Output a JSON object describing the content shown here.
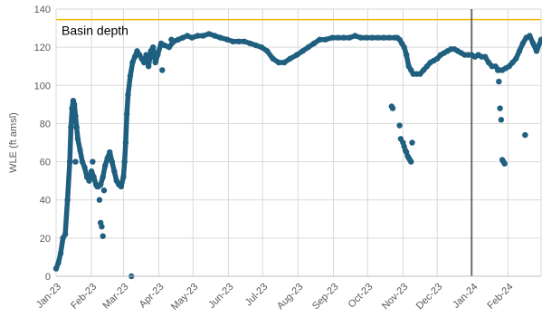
{
  "chart_data": {
    "type": "scatter",
    "ylabel": "WLE (ft amsl)",
    "xlabel": "",
    "ylim": [
      0,
      140
    ],
    "yticks": [
      0,
      20,
      40,
      60,
      80,
      100,
      120,
      140
    ],
    "xlim": [
      "2023-01-01",
      "2024-03-01"
    ],
    "xticks": [
      {
        "date": "2023-01-01",
        "label": "Jan-23"
      },
      {
        "date": "2023-02-01",
        "label": "Feb-23"
      },
      {
        "date": "2023-03-01",
        "label": "Mar-23"
      },
      {
        "date": "2023-04-01",
        "label": "Apr-23"
      },
      {
        "date": "2023-05-01",
        "label": "May-23"
      },
      {
        "date": "2023-06-01",
        "label": "Jun-23"
      },
      {
        "date": "2023-07-01",
        "label": "Jul-23"
      },
      {
        "date": "2023-08-01",
        "label": "Aug-23"
      },
      {
        "date": "2023-09-01",
        "label": "Sep-23"
      },
      {
        "date": "2023-10-01",
        "label": "Oct-23"
      },
      {
        "date": "2023-11-01",
        "label": "Nov-23"
      },
      {
        "date": "2023-12-01",
        "label": "Dec-23"
      },
      {
        "date": "2024-01-01",
        "label": "Jan-24"
      },
      {
        "date": "2024-02-01",
        "label": "Feb-24"
      }
    ],
    "grid": true,
    "colors": {
      "series": "#1f5f7f",
      "basin_depth": "#f5b800",
      "grid": "#d9d9d9",
      "vline": "#000000"
    },
    "reference_line": {
      "label": "Basin depth",
      "y": 134.5
    },
    "vertical_line": {
      "date": "2023-12-31"
    },
    "series": [
      {
        "x": [
          "2023-01-01",
          "2023-01-03",
          "2023-01-05",
          "2023-01-07",
          "2023-01-09",
          "2023-01-11",
          "2023-01-13",
          "2023-01-14",
          "2023-01-15",
          "2023-01-16",
          "2023-01-17",
          "2023-01-18",
          "2023-01-19",
          "2023-01-20",
          "2023-01-22",
          "2023-01-24",
          "2023-01-26",
          "2023-01-28",
          "2023-01-30",
          "2023-02-01",
          "2023-02-03",
          "2023-02-05",
          "2023-02-06",
          "2023-02-07",
          "2023-02-09",
          "2023-02-11",
          "2023-02-13",
          "2023-02-15",
          "2023-02-17",
          "2023-02-19",
          "2023-02-21",
          "2023-02-23",
          "2023-02-25",
          "2023-02-27",
          "2023-03-01",
          "2023-03-02",
          "2023-03-03",
          "2023-03-04",
          "2023-03-05",
          "2023-03-07",
          "2023-03-09",
          "2023-03-11",
          "2023-03-13",
          "2023-03-15",
          "2023-03-17",
          "2023-03-19",
          "2023-03-21",
          "2023-03-23",
          "2023-03-25",
          "2023-03-27",
          "2023-03-29",
          "2023-03-31",
          "2023-04-03",
          "2023-04-06",
          "2023-04-10",
          "2023-04-14",
          "2023-04-18",
          "2023-04-22",
          "2023-04-26",
          "2023-04-30",
          "2023-05-05",
          "2023-05-10",
          "2023-05-15",
          "2023-05-20",
          "2023-05-25",
          "2023-05-31",
          "2023-06-05",
          "2023-06-10",
          "2023-06-15",
          "2023-06-20",
          "2023-06-25",
          "2023-06-30",
          "2023-07-05",
          "2023-07-10",
          "2023-07-15",
          "2023-07-20",
          "2023-07-25",
          "2023-07-31",
          "2023-08-05",
          "2023-08-10",
          "2023-08-15",
          "2023-08-20",
          "2023-08-25",
          "2023-08-31",
          "2023-09-05",
          "2023-09-10",
          "2023-09-15",
          "2023-09-20",
          "2023-09-25",
          "2023-09-30",
          "2023-10-05",
          "2023-10-10",
          "2023-10-15",
          "2023-10-20",
          "2023-10-25",
          "2023-10-27",
          "2023-10-29",
          "2023-10-31",
          "2023-11-02",
          "2023-11-04",
          "2023-11-06",
          "2023-11-08",
          "2023-11-10",
          "2023-11-13",
          "2023-11-16",
          "2023-11-19",
          "2023-11-22",
          "2023-11-25",
          "2023-11-28",
          "2023-12-01",
          "2023-12-04",
          "2023-12-07",
          "2023-12-10",
          "2023-12-13",
          "2023-12-16",
          "2023-12-19",
          "2023-12-22",
          "2023-12-25",
          "2023-12-28",
          "2023-12-31",
          "2024-01-03",
          "2024-01-06",
          "2024-01-09",
          "2024-01-12",
          "2024-01-15",
          "2024-01-18",
          "2024-01-21",
          "2024-01-24",
          "2024-01-27",
          "2024-01-30",
          "2024-02-02",
          "2024-02-05",
          "2024-02-08",
          "2024-02-11",
          "2024-02-14",
          "2024-02-17",
          "2024-02-20",
          "2024-02-23",
          "2024-02-26",
          "2024-03-01"
        ],
        "y": [
          4,
          7,
          12,
          20,
          22,
          40,
          60,
          78,
          88,
          92,
          90,
          84,
          78,
          72,
          66,
          60,
          57,
          52,
          50,
          55,
          52,
          48,
          47,
          47,
          48,
          52,
          58,
          62,
          65,
          60,
          55,
          50,
          48,
          47,
          52,
          60,
          70,
          85,
          95,
          105,
          112,
          115,
          118,
          116,
          114,
          112,
          116,
          110,
          118,
          120,
          112,
          116,
          122,
          121,
          120,
          123,
          124,
          125,
          126,
          125,
          126,
          126,
          127,
          126,
          125,
          124,
          123,
          123,
          123,
          122,
          121,
          120,
          118,
          114,
          112,
          112,
          114,
          116,
          118,
          120,
          122,
          124,
          124,
          125,
          125,
          125,
          125,
          126,
          125,
          125,
          125,
          125,
          125,
          125,
          125,
          125,
          124,
          122,
          120,
          116,
          110,
          108,
          106,
          106,
          106,
          108,
          110,
          112,
          113,
          114,
          116,
          117,
          118,
          119,
          119,
          118,
          117,
          116,
          116,
          116,
          115,
          116,
          115,
          115,
          112,
          110,
          110,
          108,
          108,
          109,
          110,
          112,
          114,
          118,
          122,
          125,
          126,
          122,
          118,
          124
        ],
        "outliers_x": [
          "2023-02-08",
          "2023-02-09",
          "2023-02-10",
          "2023-02-11",
          "2023-02-12",
          "2023-03-08",
          "2023-03-26",
          "2023-04-04",
          "2023-04-12",
          "2023-10-22",
          "2023-10-23",
          "2023-10-29",
          "2023-10-30",
          "2023-11-01",
          "2023-11-02",
          "2023-11-03",
          "2023-11-04",
          "2023-11-05",
          "2023-11-06",
          "2023-11-07",
          "2023-11-08",
          "2023-11-09",
          "2023-01-18",
          "2023-02-02",
          "2024-01-24",
          "2024-01-25",
          "2024-01-26",
          "2024-01-27",
          "2024-01-28",
          "2024-01-29",
          "2024-02-16",
          "2024-01-23"
        ],
        "outliers_y": [
          40,
          28,
          26,
          21,
          45,
          0,
          116,
          108,
          124,
          89,
          88,
          79,
          72,
          70,
          68,
          66,
          65,
          63,
          62,
          61,
          60,
          70,
          60,
          60,
          102,
          88,
          82,
          61,
          60,
          59,
          74,
          108
        ]
      }
    ]
  }
}
